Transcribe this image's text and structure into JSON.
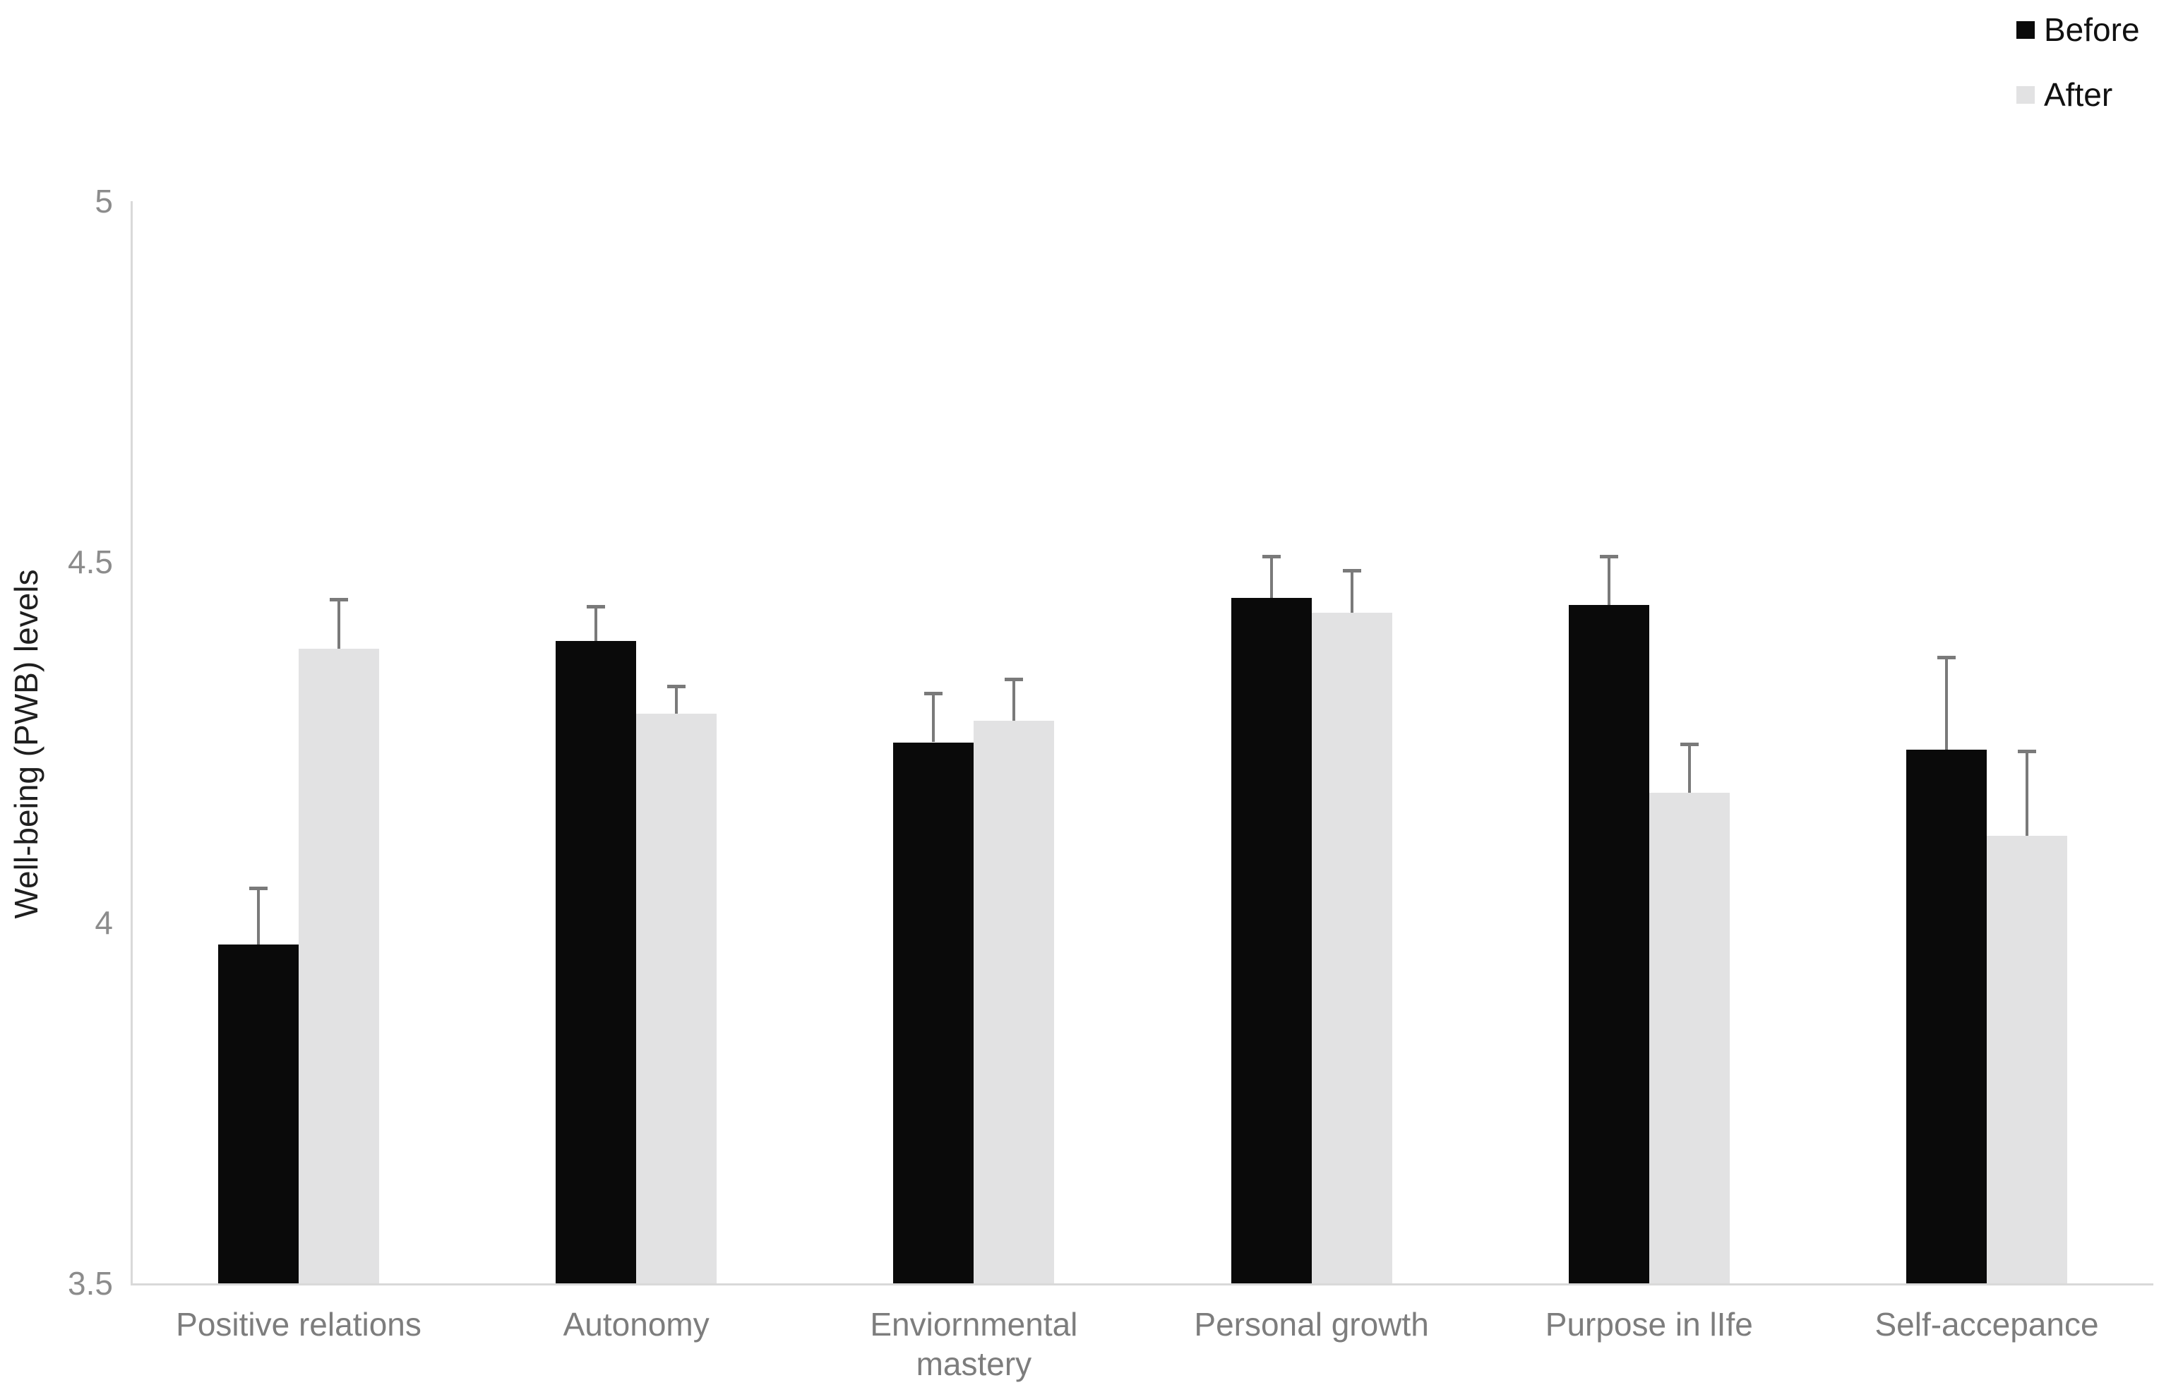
{
  "chart_data": {
    "type": "bar",
    "title": "",
    "xlabel": "",
    "ylabel": "Well-being (PWB) levels",
    "ylim": [
      3.5,
      5
    ],
    "yticks": [
      5,
      4.5,
      4,
      3.5
    ],
    "ytick_labels": [
      "5",
      "4.5",
      "4",
      "3.5"
    ],
    "grid": false,
    "error_bars": true,
    "legend_position": "top-right",
    "categories": [
      "Positive relations",
      "Autonomy",
      "Enviornmental mastery",
      "Personal growth",
      "Purpose in lIfe",
      "Self-accepance"
    ],
    "series": [
      {
        "name": "Before",
        "color": "#0a0a0a",
        "values": [
          3.97,
          4.39,
          4.25,
          4.45,
          4.44,
          4.24
        ],
        "errors": [
          0.08,
          0.05,
          0.07,
          0.06,
          0.07,
          0.13
        ]
      },
      {
        "name": "After",
        "color": "#e2e2e3",
        "values": [
          4.38,
          4.29,
          4.28,
          4.43,
          4.18,
          4.12
        ],
        "errors": [
          0.07,
          0.04,
          0.06,
          0.06,
          0.07,
          0.12
        ]
      }
    ]
  },
  "colors": {
    "axis_line": "#d9d9d9",
    "error_bar": "#7a7a7a",
    "tick_label": "#8c8c8c",
    "category_label": "#7d7d7d"
  }
}
